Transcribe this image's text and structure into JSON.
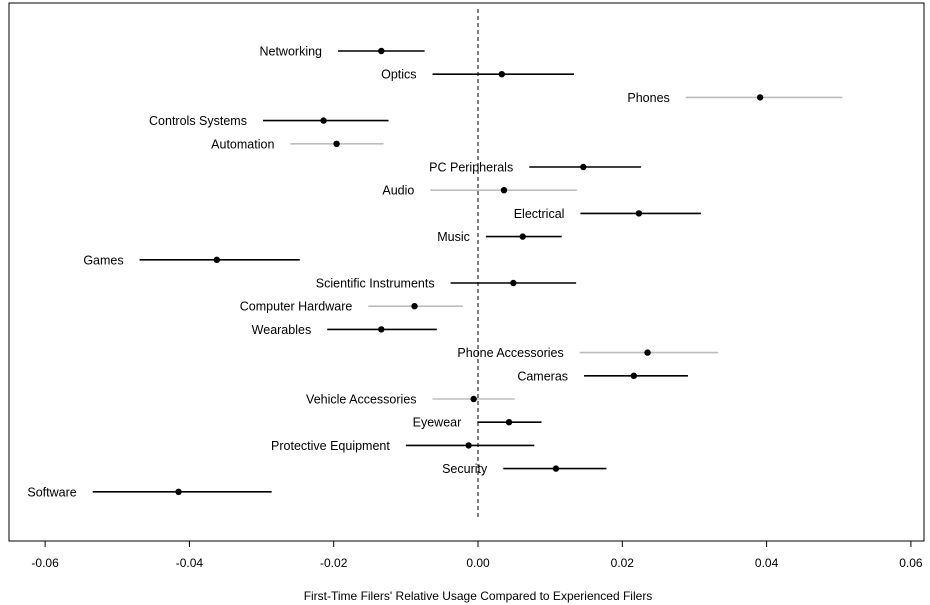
{
  "chart_data": {
    "type": "scatter",
    "subtype": "forest-plot",
    "xlabel": "First-Time Filers' Relative Usage Compared to Experienced Filers",
    "ylabel": "",
    "title": "",
    "xlim": [
      -0.063,
      0.063
    ],
    "xticks": [
      "-0.06",
      "-0.04",
      "-0.02",
      "0.00",
      "0.02",
      "0.04",
      "0.06"
    ],
    "xtick_values": [
      -0.06,
      -0.04,
      -0.02,
      0.0,
      0.02,
      0.04,
      0.06
    ],
    "reference_line": 0.0,
    "grid": false,
    "legend": "none",
    "colors": {
      "significant": "#000000",
      "not_significant": "#bdbdbd",
      "point": "#000000"
    },
    "points": [
      {
        "label": "Networking",
        "estimate": -0.0134,
        "low": -0.0194,
        "high": -0.0074,
        "significant": true
      },
      {
        "label": "Optics",
        "estimate": 0.0033,
        "low": -0.0063,
        "high": 0.0133,
        "significant": true
      },
      {
        "label": "Phones",
        "estimate": 0.0391,
        "low": 0.0288,
        "high": 0.0505,
        "significant": false
      },
      {
        "label": "Controls Systems",
        "estimate": -0.0214,
        "low": -0.0298,
        "high": -0.0124,
        "significant": true
      },
      {
        "label": "Automation",
        "estimate": -0.0196,
        "low": -0.026,
        "high": -0.0131,
        "significant": false
      },
      {
        "label": "PC Peripherals",
        "estimate": 0.0146,
        "low": 0.0071,
        "high": 0.0226,
        "significant": true
      },
      {
        "label": "Audio",
        "estimate": 0.0036,
        "low": -0.0066,
        "high": 0.0137,
        "significant": false
      },
      {
        "label": "Electrical",
        "estimate": 0.0223,
        "low": 0.0142,
        "high": 0.0309,
        "significant": true
      },
      {
        "label": "Music",
        "estimate": 0.0062,
        "low": 0.0011,
        "high": 0.0116,
        "significant": true
      },
      {
        "label": "Games",
        "estimate": -0.0362,
        "low": -0.0469,
        "high": -0.0247,
        "significant": true
      },
      {
        "label": "Scientific Instruments",
        "estimate": 0.0049,
        "low": -0.0038,
        "high": 0.0136,
        "significant": true
      },
      {
        "label": "Computer Hardware",
        "estimate": -0.0088,
        "low": -0.0152,
        "high": -0.0021,
        "significant": false
      },
      {
        "label": "Wearables",
        "estimate": -0.0134,
        "low": -0.0209,
        "high": -0.0057,
        "significant": true
      },
      {
        "label": "Phone Accessories",
        "estimate": 0.0235,
        "low": 0.0141,
        "high": 0.0333,
        "significant": false
      },
      {
        "label": "Cameras",
        "estimate": 0.0216,
        "low": 0.0147,
        "high": 0.0291,
        "significant": true
      },
      {
        "label": "Vehicle Accessories",
        "estimate": -0.0006,
        "low": -0.0063,
        "high": 0.0051,
        "significant": false
      },
      {
        "label": "Eyewear",
        "estimate": 0.0043,
        "low": -0.0001,
        "high": 0.0088,
        "significant": true
      },
      {
        "label": "Protective Equipment",
        "estimate": -0.0013,
        "low": -0.01,
        "high": 0.0078,
        "significant": true
      },
      {
        "label": "Security",
        "estimate": 0.0108,
        "low": 0.0035,
        "high": 0.0178,
        "significant": true
      },
      {
        "label": "Software",
        "estimate": -0.0415,
        "low": -0.0534,
        "high": -0.0286,
        "significant": true
      }
    ]
  }
}
